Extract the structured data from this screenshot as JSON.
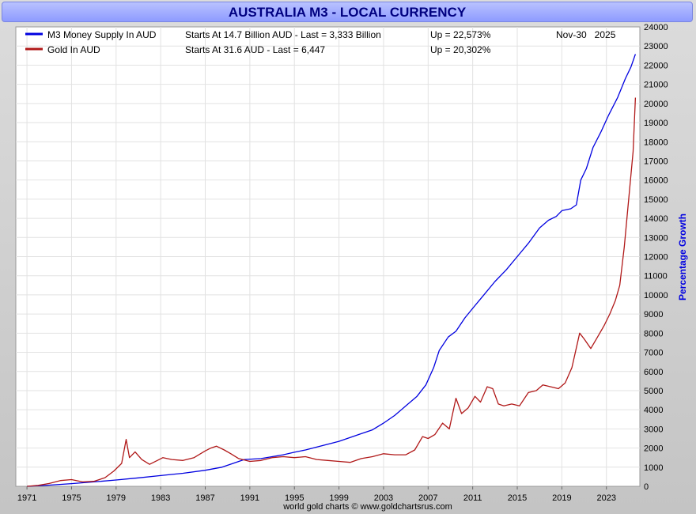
{
  "chart_data": {
    "type": "line",
    "title": "AUSTRALIA M3 - LOCAL CURRENCY",
    "ylabel": "Percentage Growth",
    "footer": "world gold charts © www.goldchartsrus.com",
    "date_label": "Nov-30   2025",
    "xlim": [
      1970,
      2026
    ],
    "ylim": [
      0,
      24000
    ],
    "x_ticks": [
      "1971",
      "1975",
      "1979",
      "1983",
      "1987",
      "1991",
      "1995",
      "1999",
      "2003",
      "2007",
      "2011",
      "2015",
      "2019",
      "2023"
    ],
    "y_ticks": [
      "0",
      "1000",
      "2000",
      "3000",
      "4000",
      "5000",
      "6000",
      "7000",
      "8000",
      "9000",
      "10000",
      "11000",
      "12000",
      "13000",
      "14000",
      "15000",
      "16000",
      "17000",
      "18000",
      "19000",
      "20000",
      "21000",
      "22000",
      "23000",
      "24000"
    ],
    "grid": true,
    "legend_position": "top-left",
    "series": [
      {
        "name": "M3 Money Supply In AUD",
        "color": "#0000e0",
        "legend_start": "Starts At 14.7 Billion AUD - Last = 3,333 Billion",
        "legend_up": "Up = 22,573%",
        "points": [
          [
            1971,
            0
          ],
          [
            1973,
            60
          ],
          [
            1975,
            140
          ],
          [
            1977,
            230
          ],
          [
            1979,
            330
          ],
          [
            1981,
            440
          ],
          [
            1983,
            560
          ],
          [
            1985,
            680
          ],
          [
            1987,
            840
          ],
          [
            1988.5,
            1000
          ],
          [
            1989.5,
            1200
          ],
          [
            1990.5,
            1400
          ],
          [
            1992,
            1450
          ],
          [
            1993,
            1550
          ],
          [
            1994,
            1650
          ],
          [
            1995,
            1780
          ],
          [
            1996,
            1900
          ],
          [
            1997,
            2050
          ],
          [
            1998,
            2200
          ],
          [
            1999,
            2350
          ],
          [
            2000,
            2550
          ],
          [
            2001,
            2750
          ],
          [
            2002,
            2950
          ],
          [
            2003,
            3300
          ],
          [
            2004,
            3700
          ],
          [
            2005,
            4200
          ],
          [
            2006,
            4700
          ],
          [
            2006.8,
            5300
          ],
          [
            2007.5,
            6200
          ],
          [
            2008,
            7100
          ],
          [
            2008.8,
            7800
          ],
          [
            2009.5,
            8100
          ],
          [
            2010.3,
            8800
          ],
          [
            2011,
            9300
          ],
          [
            2012,
            10000
          ],
          [
            2013,
            10700
          ],
          [
            2014,
            11300
          ],
          [
            2015,
            12000
          ],
          [
            2016,
            12700
          ],
          [
            2017,
            13500
          ],
          [
            2017.8,
            13900
          ],
          [
            2018.5,
            14100
          ],
          [
            2019,
            14400
          ],
          [
            2019.8,
            14500
          ],
          [
            2020.3,
            14700
          ],
          [
            2020.7,
            16000
          ],
          [
            2021.2,
            16600
          ],
          [
            2021.8,
            17700
          ],
          [
            2022.5,
            18500
          ],
          [
            2023.2,
            19400
          ],
          [
            2024,
            20300
          ],
          [
            2024.7,
            21300
          ],
          [
            2025.2,
            21900
          ],
          [
            2025.6,
            22573
          ]
        ]
      },
      {
        "name": "Gold In AUD",
        "color": "#b01818",
        "legend_start": "Starts At 31.6 AUD - Last = 6,447",
        "legend_up": "Up = 20,302%",
        "points": [
          [
            1971,
            0
          ],
          [
            1972,
            50
          ],
          [
            1973,
            150
          ],
          [
            1974,
            300
          ],
          [
            1975,
            350
          ],
          [
            1976,
            230
          ],
          [
            1977,
            260
          ],
          [
            1978,
            450
          ],
          [
            1978.8,
            800
          ],
          [
            1979.5,
            1200
          ],
          [
            1979.9,
            2450
          ],
          [
            1980.2,
            1500
          ],
          [
            1980.7,
            1800
          ],
          [
            1981.3,
            1400
          ],
          [
            1982,
            1150
          ],
          [
            1982.7,
            1350
          ],
          [
            1983.2,
            1500
          ],
          [
            1984,
            1400
          ],
          [
            1985,
            1350
          ],
          [
            1986,
            1500
          ],
          [
            1987,
            1850
          ],
          [
            1987.5,
            2000
          ],
          [
            1988,
            2100
          ],
          [
            1988.7,
            1900
          ],
          [
            1989.3,
            1700
          ],
          [
            1990,
            1450
          ],
          [
            1991,
            1300
          ],
          [
            1992,
            1350
          ],
          [
            1993,
            1500
          ],
          [
            1994,
            1550
          ],
          [
            1995,
            1500
          ],
          [
            1996,
            1550
          ],
          [
            1997,
            1400
          ],
          [
            1998,
            1350
          ],
          [
            1999,
            1300
          ],
          [
            2000,
            1250
          ],
          [
            2001,
            1450
          ],
          [
            2002,
            1550
          ],
          [
            2003,
            1700
          ],
          [
            2004,
            1650
          ],
          [
            2005,
            1650
          ],
          [
            2005.8,
            1900
          ],
          [
            2006.5,
            2600
          ],
          [
            2007,
            2500
          ],
          [
            2007.6,
            2700
          ],
          [
            2008.3,
            3300
          ],
          [
            2008.9,
            3000
          ],
          [
            2009.5,
            4600
          ],
          [
            2010,
            3800
          ],
          [
            2010.6,
            4100
          ],
          [
            2011.2,
            4700
          ],
          [
            2011.7,
            4400
          ],
          [
            2012.3,
            5200
          ],
          [
            2012.8,
            5100
          ],
          [
            2013.3,
            4300
          ],
          [
            2013.8,
            4200
          ],
          [
            2014.5,
            4300
          ],
          [
            2015.2,
            4200
          ],
          [
            2016,
            4900
          ],
          [
            2016.7,
            5000
          ],
          [
            2017.3,
            5300
          ],
          [
            2018,
            5200
          ],
          [
            2018.7,
            5100
          ],
          [
            2019.3,
            5400
          ],
          [
            2019.9,
            6200
          ],
          [
            2020.6,
            8000
          ],
          [
            2021,
            7700
          ],
          [
            2021.6,
            7200
          ],
          [
            2022.2,
            7800
          ],
          [
            2022.8,
            8400
          ],
          [
            2023.3,
            9000
          ],
          [
            2023.8,
            9700
          ],
          [
            2024.2,
            10500
          ],
          [
            2024.6,
            12500
          ],
          [
            2025,
            15000
          ],
          [
            2025.4,
            17500
          ],
          [
            2025.6,
            20302
          ]
        ]
      }
    ]
  }
}
